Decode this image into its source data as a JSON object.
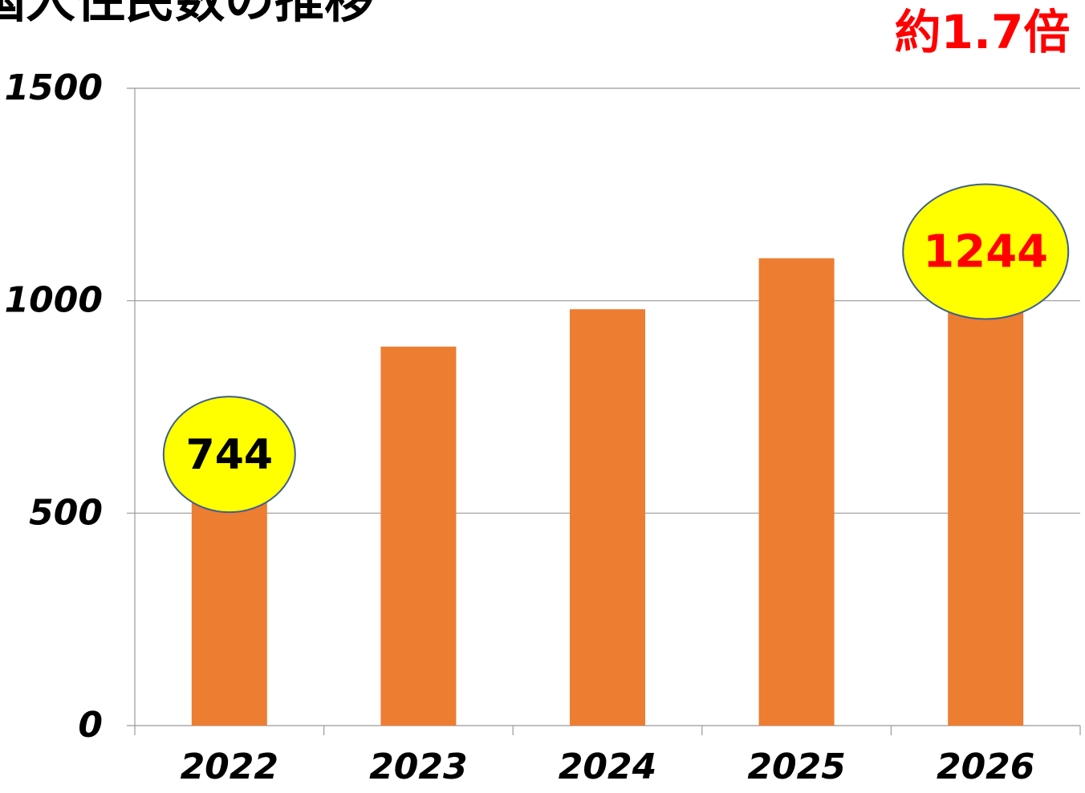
{
  "chart_data": {
    "type": "bar",
    "title": "国人住民数の推移",
    "annotation": "約1.7倍",
    "categories": [
      "2022",
      "2023",
      "2024",
      "2025",
      "2026"
    ],
    "values": [
      744,
      892,
      980,
      1100,
      1244
    ],
    "color": "#ed7d31",
    "ylim": [
      0,
      1500
    ],
    "yticks": [
      0,
      500,
      1000,
      1500
    ],
    "grid": true,
    "labeled_points": [
      0,
      4
    ]
  }
}
